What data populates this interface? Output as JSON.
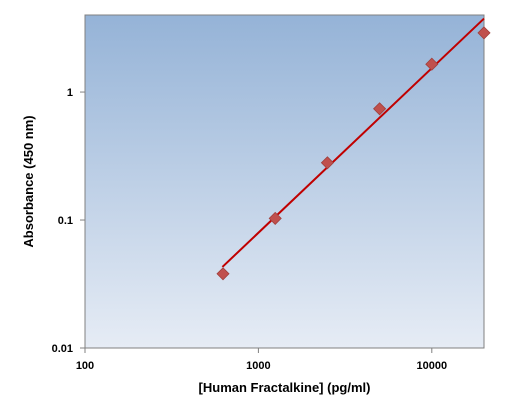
{
  "chart_data": {
    "type": "scatter",
    "title": "",
    "xlabel": "[Human Fractalkine] (pg/ml)",
    "ylabel": "Absorbance (450 nm)",
    "x_scale": "log",
    "y_scale": "log",
    "xlim": [
      100,
      20000
    ],
    "ylim": [
      0.01,
      4
    ],
    "x_ticks": [
      {
        "value": 100,
        "label": "100"
      },
      {
        "value": 1000,
        "label": "1000"
      },
      {
        "value": 10000,
        "label": "10000"
      }
    ],
    "y_ticks": [
      {
        "value": 0.01,
        "label": "0.01"
      },
      {
        "value": 0.1,
        "label": "0.1"
      },
      {
        "value": 1,
        "label": "1"
      }
    ],
    "grid": false,
    "legend": "none",
    "series": [
      {
        "marker": "diamond",
        "color": "#C0504D",
        "points": [
          {
            "x": 625,
            "y": 0.038
          },
          {
            "x": 1250,
            "y": 0.103
          },
          {
            "x": 2500,
            "y": 0.28
          },
          {
            "x": 5000,
            "y": 0.74
          },
          {
            "x": 10000,
            "y": 1.65
          },
          {
            "x": 20000,
            "y": 2.9
          }
        ]
      }
    ],
    "fit_line": {
      "color": "#C00000",
      "points": [
        {
          "x": 620,
          "y": 0.043
        },
        {
          "x": 20000,
          "y": 3.75
        }
      ]
    },
    "plot_background": {
      "top": "#95B3D7",
      "bottom": "#E6ECF5"
    }
  }
}
